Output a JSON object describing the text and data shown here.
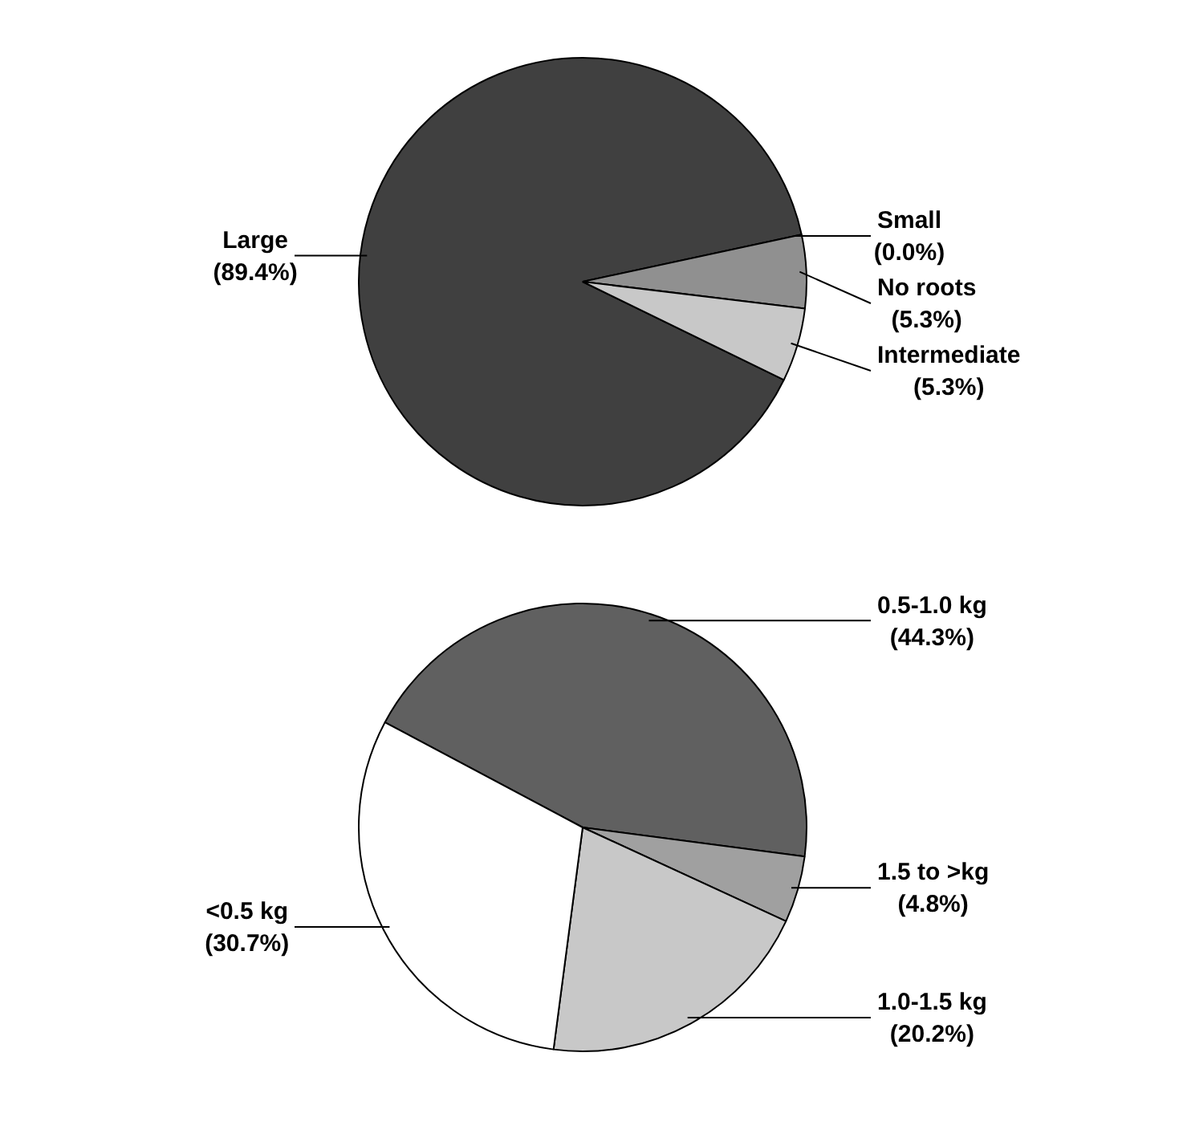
{
  "chart_data": [
    {
      "type": "pie",
      "categories": [
        "Large",
        "Small",
        "No roots",
        "Intermediate"
      ],
      "values": [
        89.4,
        0.0,
        5.3,
        5.3
      ],
      "colors": [
        "#404040",
        "#707070",
        "#909090",
        "#c8c8c8"
      ],
      "value_labels": [
        "(89.4%)",
        "(0.0%)",
        "(5.3%)",
        "(5.3%)"
      ]
    },
    {
      "type": "pie",
      "categories": [
        "0.5-1.0 kg",
        "1.5 to >kg",
        "1.0-1.5 kg",
        "<0.5 kg"
      ],
      "values": [
        44.3,
        4.8,
        20.2,
        30.7
      ],
      "colors": [
        "#606060",
        "#a0a0a0",
        "#c8c8c8",
        "#ffffff"
      ],
      "value_labels": [
        "(44.3%)",
        "(4.8%)",
        "(20.2%)",
        "(30.7%)"
      ]
    }
  ]
}
